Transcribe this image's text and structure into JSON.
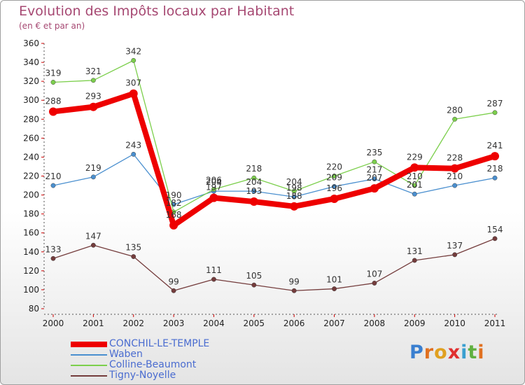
{
  "chart_data": {
    "type": "line",
    "title": "Evolution des Impôts locaux par Habitant",
    "subtitle": "(en € et par an)",
    "x": [
      "2000",
      "2001",
      "2002",
      "2003",
      "2004",
      "2005",
      "2006",
      "2007",
      "2008",
      "2009",
      "2010",
      "2011"
    ],
    "ylim": [
      80,
      360
    ],
    "yticks": [
      80,
      100,
      120,
      140,
      160,
      180,
      200,
      220,
      240,
      260,
      280,
      300,
      320,
      340,
      360
    ],
    "grid": false,
    "legend_position": "bottom-left",
    "series": [
      {
        "name": "CONCHIL-LE-TEMPLE",
        "color": "#ee0000",
        "values": [
          288,
          293,
          307,
          168,
          197,
          193,
          188,
          196,
          207,
          229,
          228,
          241
        ]
      },
      {
        "name": "Waben",
        "color": "#4a8fcf",
        "values": [
          210,
          219,
          243,
          190,
          204,
          204,
          198,
          209,
          217,
          201,
          210,
          218
        ]
      },
      {
        "name": "Colline-Beaumont",
        "color": "#7ccf4c",
        "values": [
          319,
          321,
          342,
          182,
          206,
          218,
          204,
          220,
          235,
          210,
          280,
          287
        ]
      },
      {
        "name": "Tigny-Noyelle",
        "color": "#743c3c",
        "values": [
          133,
          147,
          135,
          99,
          111,
          105,
          99,
          101,
          107,
          131,
          137,
          154
        ]
      }
    ]
  },
  "logo": {
    "letters": [
      "P",
      "r",
      "o",
      "x",
      "i",
      "t",
      "i"
    ],
    "colors": [
      "#3a7fd0",
      "#e07020",
      "#e0a020",
      "#e03030",
      "#3a9fd0",
      "#60b040",
      "#e07020"
    ]
  }
}
